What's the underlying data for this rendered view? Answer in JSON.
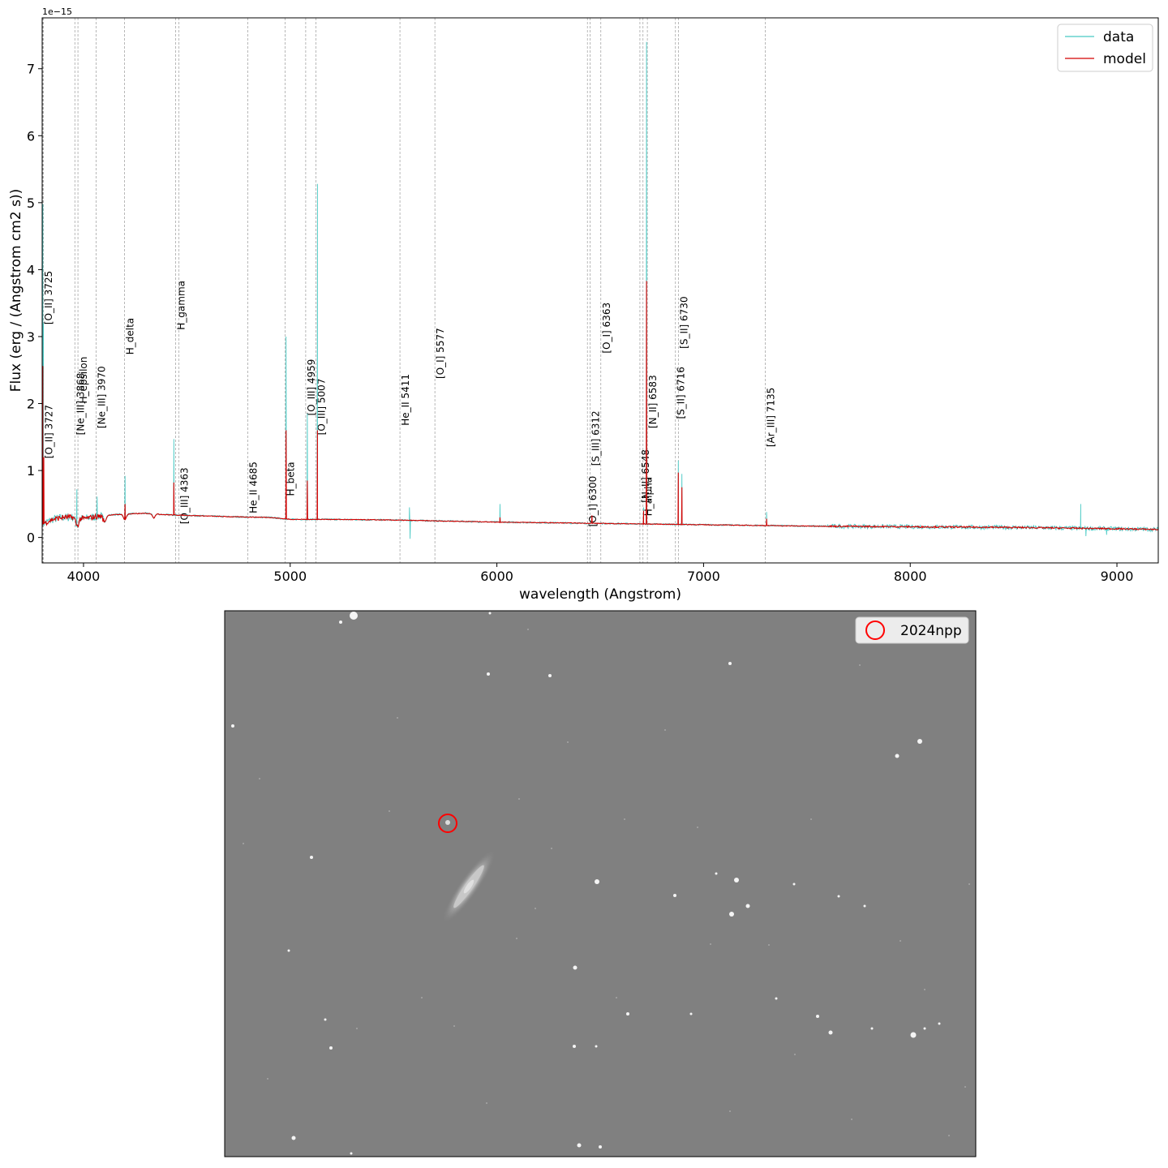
{
  "chart_data": [
    {
      "type": "line",
      "title": "",
      "xlabel": "wavelength (Angstrom)",
      "ylabel": "Flux (erg / (Angstrom cm2 s))",
      "y_scale_label": "1e−15",
      "xlim": [
        3800,
        9200
      ],
      "ylim": [
        -0.38,
        7.76
      ],
      "x_ticks": [
        4000,
        5000,
        6000,
        7000,
        8000,
        9000
      ],
      "x_tick_labels": [
        "4000",
        "5000",
        "6000",
        "7000",
        "8000",
        "9000"
      ],
      "y_ticks": [
        0,
        1,
        2,
        3,
        4,
        5,
        6,
        7
      ],
      "y_tick_labels": [
        "0",
        "1",
        "2",
        "3",
        "4",
        "5",
        "6",
        "7"
      ],
      "grid": false,
      "legend": {
        "placement": "top-right",
        "entries": [
          "data",
          "model"
        ]
      },
      "series_colors": {
        "data": "#48c9c4",
        "model": "#d40000"
      },
      "continuum": [
        [
          3800,
          0.2
        ],
        [
          3850,
          0.27
        ],
        [
          3900,
          0.3
        ],
        [
          3950,
          0.3
        ],
        [
          4000,
          0.28
        ],
        [
          4100,
          0.33
        ],
        [
          4200,
          0.35
        ],
        [
          4300,
          0.36
        ],
        [
          4400,
          0.34
        ],
        [
          4500,
          0.33
        ],
        [
          4700,
          0.31
        ],
        [
          4900,
          0.3
        ],
        [
          5000,
          0.27
        ],
        [
          5200,
          0.27
        ],
        [
          5500,
          0.26
        ],
        [
          6000,
          0.23
        ],
        [
          6500,
          0.21
        ],
        [
          7000,
          0.19
        ],
        [
          7500,
          0.17
        ],
        [
          8000,
          0.16
        ],
        [
          8500,
          0.15
        ],
        [
          9000,
          0.13
        ],
        [
          9200,
          0.12
        ]
      ],
      "absorption": [
        {
          "x": 3970,
          "depth": 0.12,
          "width": 10
        },
        {
          "x": 4102,
          "depth": 0.1,
          "width": 10
        },
        {
          "x": 4200,
          "depth": 0.08,
          "width": 10
        },
        {
          "x": 4340,
          "depth": 0.06,
          "width": 8
        }
      ],
      "data_peaks": [
        {
          "x": 3803,
          "y": 4.98
        },
        {
          "x": 3806,
          "y": 3.2
        },
        {
          "x": 3968,
          "y": 0.72
        },
        {
          "x": 4066,
          "y": 0.61
        },
        {
          "x": 4201,
          "y": 0.92
        },
        {
          "x": 4437,
          "y": 1.47
        },
        {
          "x": 4980,
          "y": 3.0
        },
        {
          "x": 5083,
          "y": 1.85
        },
        {
          "x": 5132,
          "y": 5.28
        },
        {
          "x": 5577,
          "y": 0.45
        },
        {
          "x": 6015,
          "y": 0.5
        },
        {
          "x": 6460,
          "y": 0.31
        },
        {
          "x": 6710,
          "y": 0.45
        },
        {
          "x": 6724,
          "y": 7.4
        },
        {
          "x": 6878,
          "y": 1.15
        },
        {
          "x": 6895,
          "y": 0.95
        },
        {
          "x": 7305,
          "y": 0.38
        },
        {
          "x": 8825,
          "y": 0.5
        }
      ],
      "data_dips": [
        {
          "x": 5580,
          "y": -0.02
        },
        {
          "x": 8850,
          "y": 0.02
        },
        {
          "x": 8950,
          "y": 0.04
        }
      ],
      "model_peaks": [
        {
          "x": 3803,
          "y": 2.56
        },
        {
          "x": 3808,
          "y": 1.2
        },
        {
          "x": 4201,
          "y": 0.5
        },
        {
          "x": 4437,
          "y": 0.82
        },
        {
          "x": 4980,
          "y": 1.6
        },
        {
          "x": 5083,
          "y": 0.85
        },
        {
          "x": 5132,
          "y": 1.6
        },
        {
          "x": 6015,
          "y": 0.3
        },
        {
          "x": 6460,
          "y": 0.33
        },
        {
          "x": 6710,
          "y": 0.4
        },
        {
          "x": 6724,
          "y": 3.83
        },
        {
          "x": 6878,
          "y": 0.97
        },
        {
          "x": 6895,
          "y": 0.75
        },
        {
          "x": 7305,
          "y": 0.28
        }
      ],
      "lines": [
        {
          "x": 3803,
          "label": "[O_II] 3725",
          "label_y": 3.18
        },
        {
          "x": 3806,
          "label": "[O_II] 3727",
          "label_y": 1.18
        },
        {
          "x": 3958,
          "label": "[Ne_III] 3868",
          "label_y": 1.53
        },
        {
          "x": 3973,
          "label": "H_epsilon",
          "label_y": 2.0
        },
        {
          "x": 4061,
          "label": "[Ne_III] 3970",
          "label_y": 1.63
        },
        {
          "x": 4198,
          "label": "H_delta",
          "label_y": 2.73
        },
        {
          "x": 4445,
          "label": "H_gamma",
          "label_y": 3.1
        },
        {
          "x": 4462,
          "label": "[O_III] 4363",
          "label_y": 0.2
        },
        {
          "x": 4795,
          "label": "He_II 4685",
          "label_y": 0.36
        },
        {
          "x": 4975,
          "label": "H_beta",
          "label_y": 0.62
        },
        {
          "x": 5075,
          "label": "[O_III] 4959",
          "label_y": 1.82
        },
        {
          "x": 5125,
          "label": "[O_III] 5007",
          "label_y": 1.53
        },
        {
          "x": 5531,
          "label": "He_II 5411",
          "label_y": 1.67
        },
        {
          "x": 5700,
          "label": "[O_I] 5577",
          "label_y": 2.37
        },
        {
          "x": 6438,
          "label": "[O_I] 6300",
          "label_y": 0.16
        },
        {
          "x": 6451,
          "label": "[S_III] 6312",
          "label_y": 1.07
        },
        {
          "x": 6503,
          "label": "[O_I] 6363",
          "label_y": 2.75
        },
        {
          "x": 6692,
          "label": "[N_II] 6548",
          "label_y": 0.52
        },
        {
          "x": 6707,
          "label": "H_alpha",
          "label_y": 0.32
        },
        {
          "x": 6728,
          "label": "[N_II] 6583",
          "label_y": 1.63
        },
        {
          "x": 6864,
          "label": "[S_II] 6716",
          "label_y": 1.77
        },
        {
          "x": 6878,
          "label": "[S_II] 6730",
          "label_y": 2.82
        },
        {
          "x": 7299,
          "label": "[Ar_III] 7135",
          "label_y": 1.35
        }
      ]
    }
  ],
  "image_panel": {
    "legend_label": "2024npp",
    "marker_color": "#ff0000",
    "background_color": "#808080"
  }
}
